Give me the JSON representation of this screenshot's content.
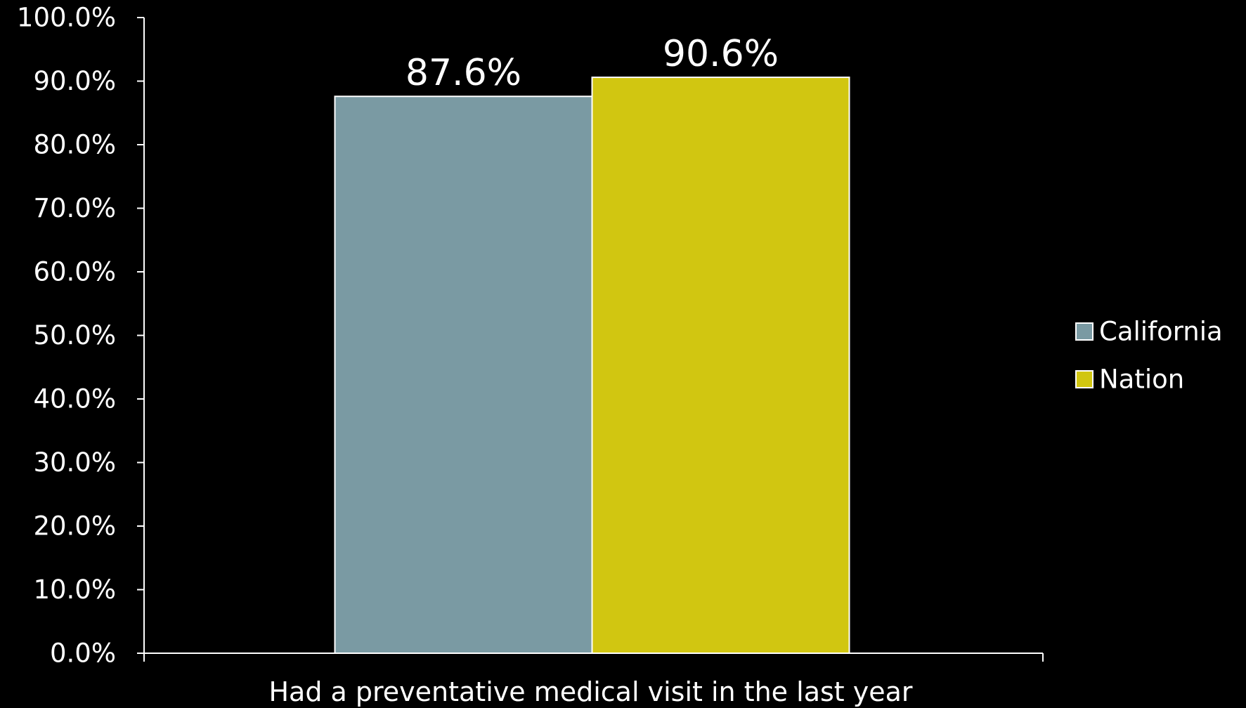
{
  "chart_data": {
    "type": "bar",
    "categories": [
      "Had a preventative medical visit in the last year"
    ],
    "series": [
      {
        "name": "California",
        "values": [
          87.6
        ],
        "color": "#7a9aa3",
        "label": "87.6%"
      },
      {
        "name": "Nation",
        "values": [
          90.6
        ],
        "color": "#d1c611",
        "label": "90.6%"
      }
    ],
    "title": "",
    "xlabel": "",
    "ylabel": "",
    "ylim": [
      0,
      100
    ],
    "yticks": [
      "0.0%",
      "10.0%",
      "20.0%",
      "30.0%",
      "40.0%",
      "50.0%",
      "60.0%",
      "70.0%",
      "80.0%",
      "90.0%",
      "100.0%"
    ],
    "legend_position": "right",
    "grid": false,
    "background": "#000000",
    "axis_color": "#ffffff",
    "bar_outline": "#ffffff"
  }
}
